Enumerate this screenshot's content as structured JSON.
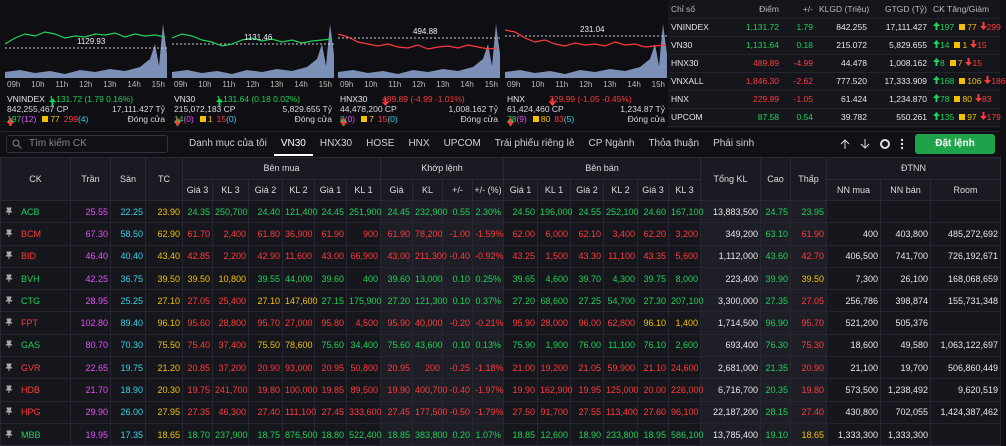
{
  "panels": [
    {
      "name": "VNINDEX",
      "ref": "1129.93",
      "change": "1,131.72 (1.79 0.16%)",
      "volume": "842,255,467 CP",
      "value": "17,111.427 Tỷ",
      "up": "197",
      "ceil": "(12)",
      "unch": "77",
      "down": "299",
      "floor": "(4)",
      "status": "Đóng cửa",
      "dir": "up"
    },
    {
      "name": "VN30",
      "ref": "1131.46",
      "change": "1,131.64 (0.18 0.02%)",
      "volume": "215,072,183 CP",
      "value": "5,829.655 Tỷ",
      "up": "14",
      "ceil": "(0)",
      "unch": "1",
      "down": "15",
      "floor": "(0)",
      "status": "Đóng cửa",
      "dir": "up"
    },
    {
      "name": "HNX30",
      "ref": "494.88",
      "change": "489.89 (-4.99 -1.01%)",
      "volume": "44,478,200 CP",
      "value": "1,008.162 Tỷ",
      "up": "8",
      "ceil": "(0)",
      "unch": "7",
      "down": "15",
      "floor": "(0)",
      "status": "Đóng cửa",
      "dir": "down"
    },
    {
      "name": "HNX",
      "ref": "231.04",
      "change": "229.99 (-1.05 -0.45%)",
      "volume": "61,424,460 CP",
      "value": "1,234.87 Tỷ",
      "up": "78",
      "ceil": "(9)",
      "unch": "80",
      "down": "83",
      "floor": "(5)",
      "status": "Đóng cửa",
      "dir": "down"
    }
  ],
  "hours": [
    "09h",
    "10h",
    "11h",
    "12h",
    "13h",
    "14h",
    "15h"
  ],
  "indices": {
    "header": [
      "Chỉ số",
      "Điểm",
      "+/-",
      "KLGD (Triệu)",
      "GTGD (Tỷ)",
      "CK Tăng/Giảm"
    ],
    "rows": [
      [
        "VNINDEX",
        "1,131.72",
        "1.79",
        "842.255",
        "17,111.427",
        "197",
        "77",
        "299"
      ],
      [
        "VN30",
        "1,131.64",
        "0.18",
        "215.072",
        "5,829.655",
        "14",
        "1",
        "15"
      ],
      [
        "HNX30",
        "489.89",
        "-4.99",
        "44.478",
        "1,008.162",
        "8",
        "7",
        "15"
      ],
      [
        "VNXALL",
        "1,846.30",
        "-2.62",
        "777.520",
        "17,333.909",
        "168",
        "106",
        "186"
      ],
      [
        "HNX",
        "229.99",
        "-1.05",
        "61.424",
        "1,234.870",
        "78",
        "80",
        "83"
      ],
      [
        "UPCOM",
        "87.58",
        "0.54",
        "39.782",
        "550.261",
        "135",
        "97",
        "179"
      ]
    ]
  },
  "toolbar": {
    "search": "Tìm kiếm CK",
    "tabs": [
      "Danh mục của tôi",
      "VN30",
      "HNX30",
      "HOSE",
      "HNX",
      "UPCOM",
      "Trái phiếu riêng lẻ",
      "CP Ngành",
      "Thỏa thuận",
      "Phái sinh"
    ],
    "active": "VN30",
    "order": "Đặt lệnh"
  },
  "table": {
    "head": {
      "ck": "CK",
      "tran": "Trần",
      "san": "Sàn",
      "tc": "TC",
      "buy": {
        "label": "Bên mua",
        "cols": [
          "Giá 3",
          "KL 3",
          "Giá 2",
          "KL 2",
          "Giá 1",
          "KL 1"
        ]
      },
      "match": {
        "label": "Khớp lệnh",
        "cols": [
          "Giá",
          "KL",
          "+/-",
          "+/- (%)"
        ]
      },
      "sell": {
        "label": "Bên bán",
        "cols": [
          "Giá 1",
          "KL 1",
          "Giá 2",
          "KL 2",
          "Giá 3",
          "KL 3"
        ]
      },
      "total": "Tổng KL",
      "high": "Cao",
      "low": "Thấp",
      "foreign": {
        "label": "ĐTNN",
        "cols": [
          "NN mua",
          "NN bán",
          "Room"
        ]
      }
    },
    "rows": [
      [
        "ACB",
        "25.55",
        "22.25",
        "23.90",
        "24.35",
        "250,700",
        "24.40",
        "121,400",
        "24.45",
        "251,900",
        "24.45",
        "232,900",
        "0.55",
        "2.30%",
        "24.50",
        "196,000",
        "24.55",
        "252,100",
        "24.60",
        "167,100",
        "13,883,500",
        "24.75",
        "23.95",
        null,
        null,
        null
      ],
      [
        "BCM",
        "67.30",
        "58.50",
        "62.90",
        "61.70",
        "2,400",
        "61.80",
        "36,900",
        "61.90",
        "900",
        "61.90",
        "78,200",
        "-1.00",
        "-1.59%",
        "62.00",
        "6,000",
        "62.10",
        "3,400",
        "62.20",
        "3,200",
        "349,200",
        "63.10",
        "61.90",
        "400",
        "403,800",
        "485,272,692"
      ],
      [
        "BID",
        "46.40",
        "40.40",
        "43.40",
        "42.85",
        "2,200",
        "42.90",
        "11,600",
        "43.00",
        "66,900",
        "43.00",
        "211,300",
        "-0.40",
        "-0.92%",
        "43.25",
        "1,500",
        "43.30",
        "11,100",
        "43.35",
        "5,600",
        "1,112,000",
        "43.60",
        "42.70",
        "406,500",
        "741,700",
        "726,192,671"
      ],
      [
        "BVH",
        "42.25",
        "36.75",
        "39.50",
        "39.50",
        "10,800",
        "39.55",
        "44,000",
        "39.60",
        "400",
        "39.60",
        "13,000",
        "0.10",
        "0.25%",
        "39.65",
        "4,600",
        "39.70",
        "4,300",
        "39.75",
        "8,000",
        "223,400",
        "39.90",
        "39.50",
        "7,300",
        "26,100",
        "168,068,659"
      ],
      [
        "CTG",
        "28.95",
        "25.25",
        "27.10",
        "27.05",
        "25,400",
        "27.10",
        "147,600",
        "27.15",
        "175,900",
        "27.20",
        "121,300",
        "0.10",
        "0.37%",
        "27.20",
        "68,600",
        "27.25",
        "54,700",
        "27.30",
        "207,100",
        "3,300,000",
        "27.35",
        "27.05",
        "256,786",
        "398,874",
        "155,731,348"
      ],
      [
        "FPT",
        "102.80",
        "89.40",
        "96.10",
        "95.60",
        "28,800",
        "95.70",
        "27,000",
        "95.80",
        "4,500",
        "95.90",
        "40,000",
        "-0.20",
        "-0.21%",
        "95.90",
        "28,000",
        "96.00",
        "62,800",
        "96.10",
        "1,400",
        "1,714,500",
        "96.90",
        "95.70",
        "521,200",
        "505,376",
        null
      ],
      [
        "GAS",
        "80.70",
        "70.30",
        "75.50",
        "75.40",
        "37,400",
        "75.50",
        "78,600",
        "75.60",
        "34,400",
        "75.60",
        "43,600",
        "0.10",
        "0.13%",
        "75.90",
        "1,900",
        "76.00",
        "11,100",
        "76.10",
        "2,600",
        "693,400",
        "76.30",
        "75.30",
        "18,600",
        "49,580",
        "1,063,122,697"
      ],
      [
        "GVR",
        "22.65",
        "19.75",
        "21.20",
        "20.85",
        "37,200",
        "20.90",
        "93,000",
        "20.95",
        "50,800",
        "20.95",
        "200",
        "-0.25",
        "-1.18%",
        "21.00",
        "19,200",
        "21.05",
        "59,900",
        "21.10",
        "24,600",
        "2,681,000",
        "21.35",
        "20.90",
        "21,100",
        "19,700",
        "506,860,449"
      ],
      [
        "HDB",
        "21.70",
        "18.90",
        "20.30",
        "19.75",
        "241,700",
        "19.80",
        "100,000",
        "19.85",
        "89,500",
        "19.90",
        "400,700",
        "-0.40",
        "-1.97%",
        "19.90",
        "162,900",
        "19.95",
        "125,000",
        "20.00",
        "226,000",
        "6,716,700",
        "20.35",
        "19.80",
        "573,500",
        "1,238,492",
        "9,620,519"
      ],
      [
        "HPG",
        "29.90",
        "26.00",
        "27.95",
        "27.35",
        "46,300",
        "27.40",
        "111,100",
        "27.45",
        "333,600",
        "27.45",
        "177,500",
        "-0.50",
        "-1.79%",
        "27.50",
        "91,700",
        "27.55",
        "113,400",
        "27.60",
        "96,100",
        "22,187,200",
        "28.15",
        "27.40",
        "430,800",
        "702,055",
        "1,424,387,462"
      ],
      [
        "MBB",
        "19.95",
        "17.35",
        "18.65",
        "18.70",
        "237,900",
        "18.75",
        "876,500",
        "18.80",
        "522,400",
        "18.85",
        "383,800",
        "0.20",
        "1.07%",
        "18.85",
        "12,600",
        "18.90",
        "233,800",
        "18.95",
        "586,100",
        "13,785,400",
        "19.10",
        "18.65",
        "1,333,300",
        "1,333,300",
        null
      ]
    ]
  }
}
